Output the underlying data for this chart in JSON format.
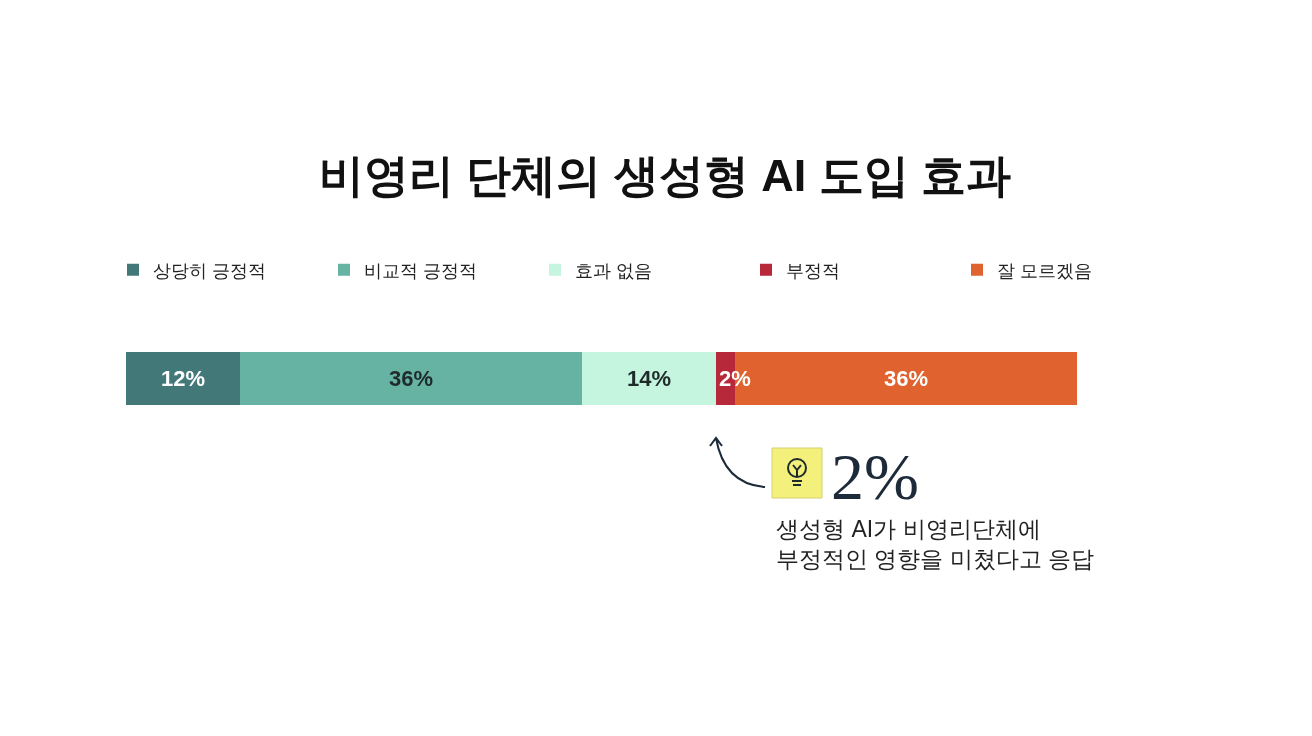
{
  "chart_data": {
    "type": "bar",
    "orientation": "horizontal",
    "stacked": true,
    "title": "비영리 단체의 생성형 AI 도입 효과",
    "categories": [
      null
    ],
    "xlim": [
      0,
      100
    ],
    "tick_labels": false,
    "legend": "top",
    "series": [
      {
        "name": "상당히 긍정적",
        "color": "#437879",
        "values": [
          12
        ],
        "value_labels": [
          "12%"
        ]
      },
      {
        "name": "비교적 긍정적",
        "color": "#67b3a3",
        "values": [
          36
        ],
        "value_labels": [
          "36%"
        ]
      },
      {
        "name": "효과 없음",
        "color": "#c5f5de",
        "values": [
          14
        ],
        "value_labels": [
          "14%"
        ]
      },
      {
        "name": "부정적",
        "color": "#b7293a",
        "values": [
          2
        ],
        "value_labels": [
          "2%"
        ]
      },
      {
        "name": "잘 모르겠음",
        "color": "#e0622f",
        "values": [
          36
        ],
        "value_labels": [
          "36%"
        ]
      }
    ],
    "annotations": [
      "2%",
      "생성형 AI가 비영리단체에\n부정적인 영향을 미쳤다고 응답"
    ]
  }
}
